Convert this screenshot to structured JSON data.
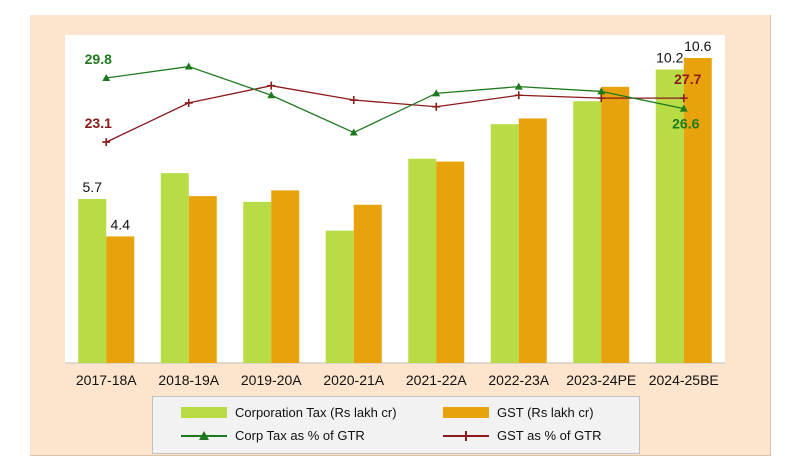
{
  "chart_data": {
    "type": "bar",
    "categories": [
      "2017-18A",
      "2018-19A",
      "2019-20A",
      "2020-21A",
      "2021-22A",
      "2022-23A",
      "2023-24PE",
      "2024-25BE"
    ],
    "series": [
      {
        "name": "Corporation Tax (Rs lakh cr)",
        "type": "bar",
        "color": "#b7dc45",
        "values": [
          5.7,
          6.6,
          5.6,
          4.6,
          7.1,
          8.3,
          9.1,
          10.2
        ]
      },
      {
        "name": "GST (Rs lakh cr)",
        "type": "bar",
        "color": "#e8a20c",
        "values": [
          4.4,
          5.8,
          6.0,
          5.5,
          7.0,
          8.5,
          9.6,
          10.6
        ]
      },
      {
        "name": "Corp Tax as % of GTR",
        "type": "line",
        "marker": "triangle",
        "color": "#1f7a1f",
        "values": [
          29.8,
          31.0,
          28.0,
          24.1,
          28.2,
          28.9,
          28.4,
          26.6
        ]
      },
      {
        "name": "GST as % of GTR",
        "type": "line",
        "marker": "plus",
        "color": "#8b1a1a",
        "values": [
          23.1,
          27.2,
          29.0,
          27.5,
          26.8,
          28.0,
          27.7,
          27.7
        ]
      }
    ],
    "data_labels": {
      "bar_corp_first": "5.7",
      "bar_gst_first": "4.4",
      "bar_corp_last": "10.2",
      "bar_gst_last": "10.6",
      "corp_pct_first": "29.8",
      "gst_pct_first": "23.1",
      "gst_pct_last": "27.7",
      "corp_pct_last": "26.6"
    },
    "bar_axis_range": [
      0,
      11.4
    ],
    "pct_axis_range": [
      0,
      34.3
    ],
    "grid": false,
    "legend_position": "bottom",
    "title": "",
    "xlabel": "",
    "ylabel": ""
  },
  "colors": {
    "background": "#fde5cd",
    "plot_area": "#ffffff",
    "corp_tax_bar": "#b7dc45",
    "gst_bar": "#e8a20c",
    "corp_pct_line": "#1f7a1f",
    "gst_pct_line": "#8b1a1a"
  }
}
